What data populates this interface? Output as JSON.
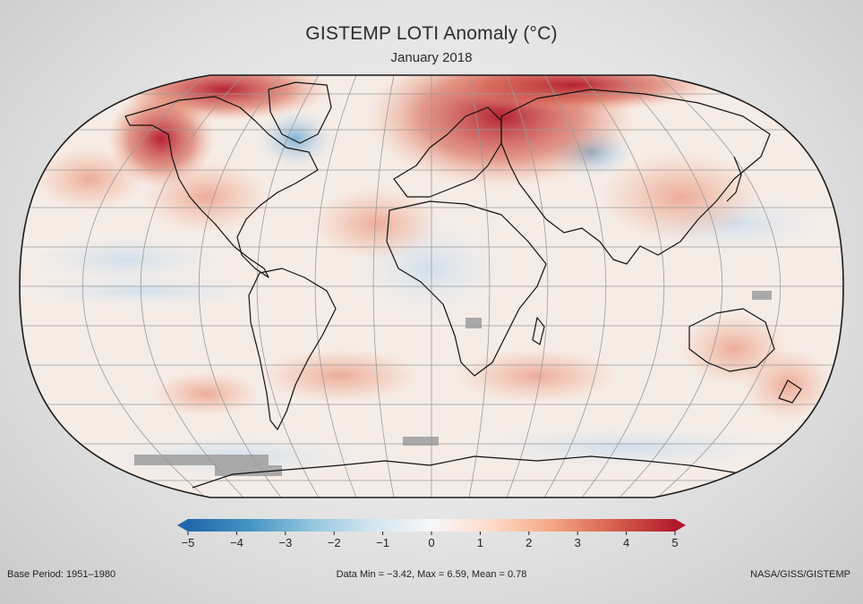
{
  "title": "GISTEMP LOTI Anomaly (°C)",
  "subtitle": "January 2018",
  "colorbar": {
    "ticks": [
      "−5",
      "−4",
      "−3",
      "−2",
      "−1",
      "0",
      "1",
      "2",
      "3",
      "4",
      "5"
    ],
    "range": [
      -5,
      5
    ],
    "colors": [
      "#2166ac",
      "#4393c3",
      "#92c5de",
      "#d1e5f0",
      "#f7f7f7",
      "#fddbc7",
      "#f4a582",
      "#d6604d",
      "#b2182b"
    ]
  },
  "footer": {
    "base_period": "Base Period: 1951–1980",
    "stats": "Data Min = −3.42, Max = 6.59, Mean = 0.78",
    "credit": "NASA/GISS/GISTEMP"
  },
  "map": {
    "projection": "Robinson",
    "ocean_color": "#f6ece6",
    "graticule_color": "#9a9a9a",
    "coastline_color": "#111111",
    "missing_color": "#a9a9a9"
  }
}
